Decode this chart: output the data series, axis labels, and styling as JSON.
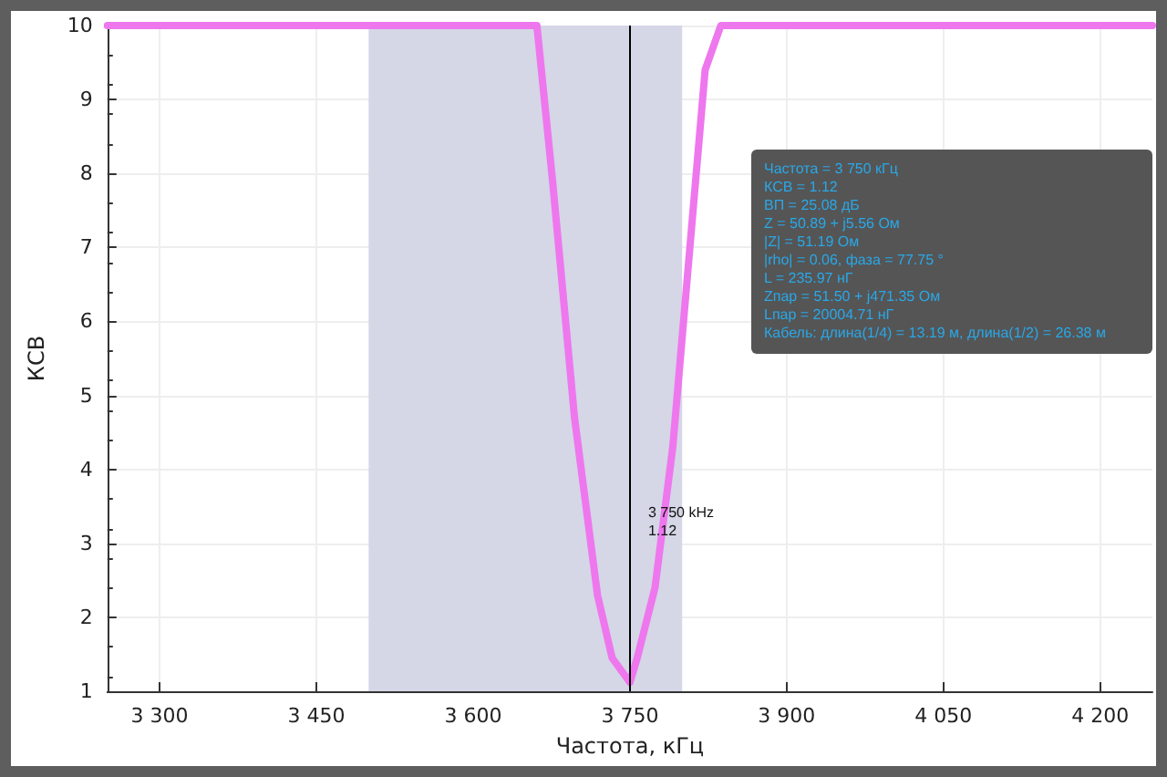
{
  "chart_data": {
    "type": "line",
    "xlabel": "Частота, кГц",
    "ylabel": "КСВ",
    "series": [
      {
        "color": "#ee77ee",
        "x": [
          3250,
          3661,
          3676,
          3697,
          3719,
          3733,
          3750,
          3757,
          3774,
          3791,
          3808,
          3822,
          3837,
          4250
        ],
        "values": [
          10,
          10,
          7.9,
          4.7,
          2.3,
          1.45,
          1.12,
          1.45,
          2.4,
          4.3,
          7.1,
          9.4,
          10,
          10
        ]
      }
    ],
    "xlim": [
      3250,
      4250
    ],
    "xticks": [
      {
        "value": 3300,
        "label": "3 300"
      },
      {
        "value": 3450,
        "label": "3 450"
      },
      {
        "value": 3600,
        "label": "3 600"
      },
      {
        "value": 3750,
        "label": "3 750"
      },
      {
        "value": 3900,
        "label": "3 900"
      },
      {
        "value": 4050,
        "label": "4 050"
      },
      {
        "value": 4200,
        "label": "4 200"
      }
    ],
    "ylim": [
      1,
      10
    ],
    "yticks": [
      1,
      2,
      3,
      4,
      5,
      6,
      7,
      8,
      9,
      10
    ],
    "grid": true,
    "marker": "none",
    "line_style": "solid",
    "bands": [
      {
        "axis": "x",
        "from": 3500,
        "to": 3800,
        "color": "#d5d6e6"
      }
    ],
    "ref_lines": [
      {
        "axis": "x",
        "value": 3750,
        "color": "#000000"
      }
    ],
    "annotations": [
      "3 750 kHz\n1.12",
      "Частота = 3 750 кГц\nКСВ = 1.12\nВП = 25.08 дБ\nZ = 50.89 + j5.56 Ом\n|Z| = 51.19 Ом\n|rho| = 0.06, фаза = 77.75 °\nL = 235.97 нГ\nZпар = 51.50 + j471.35 Ом\nLпар = 20004.71 нГ\nКабель: длина(1/4) = 13.19 м, длина(1/2) = 26.38 м"
    ]
  }
}
